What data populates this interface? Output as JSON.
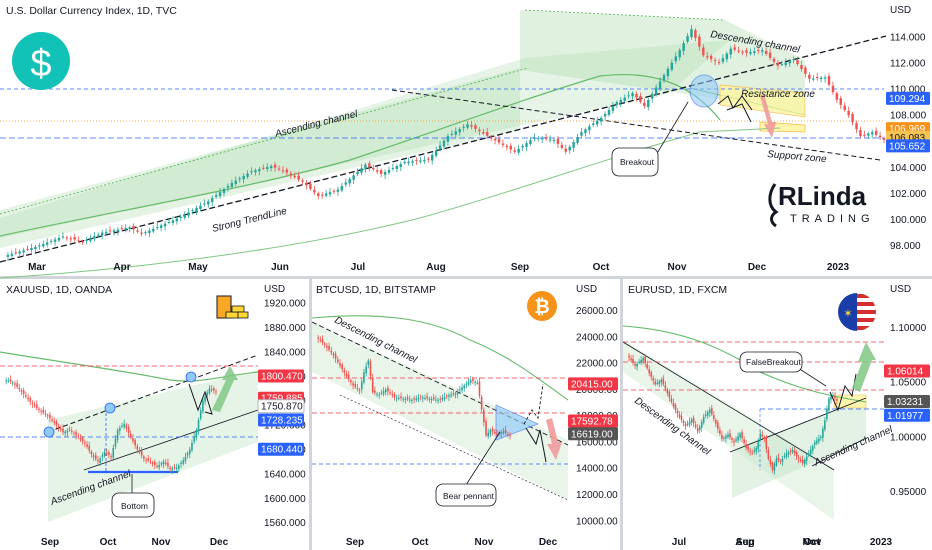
{
  "brand": {
    "logo_text_top": "RLinda",
    "logo_text_bottom": "TRADING"
  },
  "chart_data": [
    {
      "id": "dxy",
      "type": "candlestick",
      "title": "U.S. Dollar Currency Index, 1D, TVC",
      "currency_label": "USD",
      "x_labels": [
        "Mar",
        "Apr",
        "May",
        "Jun",
        "Jul",
        "Aug",
        "Sep",
        "Oct",
        "Nov",
        "Dec",
        "2023"
      ],
      "y_ticks": [
        98.0,
        100.0,
        102.0,
        104.0,
        106.0,
        108.0,
        110.0,
        112.0,
        114.0
      ],
      "ylim": [
        97.2,
        115.0
      ],
      "price_tags": [
        {
          "value": 109.294,
          "label": "109.294",
          "color": "#2962ff"
        },
        {
          "value": 106.969,
          "label": "106.969",
          "color": "#f7931a"
        },
        {
          "value": 106.3,
          "label": "106.083",
          "color": "#f6c451"
        },
        {
          "value": 105.652,
          "label": "105.652",
          "color": "#2962ff"
        }
      ],
      "annotations": [
        "Ascending channel",
        "Strong TrendLine",
        "Descending channel",
        "Resistance zone",
        "Support zone",
        "Breakout"
      ],
      "close_path": [
        [
          0,
          97.2
        ],
        [
          8,
          97.9
        ],
        [
          15,
          98.7
        ],
        [
          20,
          98.3
        ],
        [
          25,
          99.0
        ],
        [
          32,
          99.4
        ],
        [
          35,
          98.9
        ],
        [
          45,
          100.2
        ],
        [
          52,
          101.4
        ],
        [
          58,
          102.8
        ],
        [
          63,
          103.7
        ],
        [
          68,
          104.1
        ],
        [
          72,
          103.6
        ],
        [
          76,
          102.9
        ],
        [
          80,
          101.8
        ],
        [
          85,
          102.3
        ],
        [
          92,
          104.2
        ],
        [
          96,
          103.5
        ],
        [
          102,
          104.4
        ],
        [
          108,
          104.6
        ],
        [
          113,
          106.4
        ],
        [
          118,
          107.3
        ],
        [
          122,
          106.6
        ],
        [
          126,
          105.9
        ],
        [
          130,
          105.2
        ],
        [
          135,
          106.3
        ],
        [
          140,
          106.1
        ],
        [
          143,
          105.2
        ],
        [
          147,
          106.7
        ],
        [
          152,
          107.8
        ],
        [
          156,
          109.0
        ],
        [
          160,
          109.7
        ],
        [
          163,
          108.7
        ],
        [
          167,
          110.6
        ],
        [
          172,
          113.0
        ],
        [
          175,
          114.6
        ],
        [
          178,
          112.6
        ],
        [
          182,
          112.0
        ],
        [
          185,
          113.1
        ],
        [
          189,
          112.8
        ],
        [
          193,
          113.0
        ],
        [
          197,
          111.8
        ],
        [
          201,
          112.3
        ],
        [
          205,
          110.8
        ],
        [
          209,
          110.9
        ],
        [
          212,
          109.2
        ],
        [
          215,
          108.0
        ],
        [
          218,
          106.4
        ],
        [
          221,
          106.7
        ],
        [
          224,
          106.1
        ]
      ]
    },
    {
      "id": "xau",
      "type": "candlestick",
      "title": "XAUUSD, 1D, OANDA",
      "currency_label": "USD",
      "x_labels": [
        "Sep",
        "Oct",
        "Nov",
        "Dec"
      ],
      "y_ticks": [
        1560.0,
        1600.0,
        1640.0,
        1680.0,
        1720.0,
        1760.0,
        1800.0,
        1840.0,
        1880.0,
        1920.0
      ],
      "ylim": [
        1548,
        1925
      ],
      "price_tags": [
        {
          "value": 1800.47,
          "label": "1800.470",
          "color": "#f23645"
        },
        {
          "value": 1764,
          "label": "1759.885",
          "color": "#f23645"
        },
        {
          "value": 1750.87,
          "label": "1750.870",
          "color": "#ffffff"
        },
        {
          "value": 1728.235,
          "label": "1728.235",
          "color": "#2962ff"
        },
        {
          "value": 1680.44,
          "label": "1680.440",
          "color": "#2962ff"
        }
      ],
      "annotations": [
        "Ascending channel",
        "Bottom"
      ],
      "close_path": [
        [
          0,
          1795
        ],
        [
          4,
          1790
        ],
        [
          8,
          1775
        ],
        [
          12,
          1758
        ],
        [
          16,
          1745
        ],
        [
          20,
          1735
        ],
        [
          24,
          1720
        ],
        [
          27,
          1708
        ],
        [
          30,
          1712
        ],
        [
          34,
          1700
        ],
        [
          37,
          1690
        ],
        [
          40,
          1672
        ],
        [
          43,
          1660
        ],
        [
          46,
          1676
        ],
        [
          49,
          1668
        ],
        [
          52,
          1712
        ],
        [
          55,
          1722
        ],
        [
          58,
          1700
        ],
        [
          61,
          1680
        ],
        [
          64,
          1665
        ],
        [
          67,
          1660
        ],
        [
          70,
          1652
        ],
        [
          73,
          1660
        ],
        [
          76,
          1648
        ],
        [
          79,
          1650
        ],
        [
          82,
          1662
        ],
        [
          85,
          1680
        ],
        [
          88,
          1712
        ],
        [
          91,
          1760
        ],
        [
          94,
          1780
        ],
        [
          97,
          1775
        ]
      ]
    },
    {
      "id": "btc",
      "type": "candlestick",
      "title": "BTCUSD, 1D, BITSTAMP",
      "currency_label": "USD",
      "x_labels": [
        "Sep",
        "Oct",
        "Nov",
        "Dec"
      ],
      "y_ticks": [
        10000,
        12000,
        14000,
        16000,
        18000,
        20000,
        22000,
        24000,
        26000
      ],
      "ylim": [
        9300,
        26800
      ],
      "price_tags": [
        {
          "value": 20415,
          "label": "20415.00",
          "color": "#f23645"
        },
        {
          "value": 17592.78,
          "label": "17592.78",
          "color": "#f23645"
        },
        {
          "value": 16619,
          "label": "16619.00",
          "color": "#555555"
        }
      ],
      "annotations": [
        "Descending channel",
        "Bear pennant"
      ],
      "close_path": [
        [
          0,
          24000
        ],
        [
          4,
          23400
        ],
        [
          8,
          22600
        ],
        [
          11,
          21800
        ],
        [
          14,
          21000
        ],
        [
          17,
          20300
        ],
        [
          20,
          19900
        ],
        [
          22,
          21300
        ],
        [
          24,
          22200
        ],
        [
          26,
          19800
        ],
        [
          29,
          19600
        ],
        [
          32,
          20000
        ],
        [
          36,
          19400
        ],
        [
          40,
          19300
        ],
        [
          44,
          19200
        ],
        [
          48,
          19400
        ],
        [
          52,
          19300
        ],
        [
          56,
          19200
        ],
        [
          60,
          19500
        ],
        [
          64,
          19700
        ],
        [
          68,
          20300
        ],
        [
          71,
          20700
        ],
        [
          74,
          20500
        ],
        [
          76,
          18500
        ],
        [
          78,
          16500
        ],
        [
          80,
          16900
        ],
        [
          83,
          16600
        ],
        [
          86,
          16800
        ],
        [
          89,
          16500
        ]
      ]
    },
    {
      "id": "eur",
      "type": "candlestick",
      "title": "EURUSD, 1D, FXCM",
      "currency_label": "USD",
      "x_labels": [
        "Jul",
        "Aug",
        "Sep",
        "Oct",
        "Nov",
        "2023"
      ],
      "y_ticks": [
        0.95,
        1.0,
        1.05,
        1.1
      ],
      "ylim": [
        0.915,
        1.125
      ],
      "price_tags": [
        {
          "value": 1.06014,
          "label": "1.06014",
          "color": "#f23645"
        },
        {
          "value": 1.03231,
          "label": "1.03231",
          "color": "#555555"
        },
        {
          "value": 1.01977,
          "label": "1.01977",
          "color": "#2962ff"
        }
      ],
      "annotations": [
        "Descending channel",
        "Ascending channel",
        "FalseBreakout"
      ],
      "close_path": [
        [
          0,
          1.075
        ],
        [
          4,
          1.065
        ],
        [
          8,
          1.072
        ],
        [
          11,
          1.058
        ],
        [
          14,
          1.048
        ],
        [
          17,
          1.052
        ],
        [
          20,
          1.04
        ],
        [
          23,
          1.028
        ],
        [
          26,
          1.018
        ],
        [
          29,
          1.01
        ],
        [
          32,
          1.016
        ],
        [
          35,
          1.005
        ],
        [
          38,
          1.018
        ],
        [
          41,
          1.025
        ],
        [
          44,
          1.012
        ],
        [
          47,
          0.998
        ],
        [
          50,
          1.002
        ],
        [
          53,
          0.995
        ],
        [
          56,
          1.003
        ],
        [
          59,
          0.99
        ],
        [
          62,
          0.985
        ],
        [
          64,
          0.99
        ],
        [
          66,
          1.003
        ],
        [
          68,
          0.998
        ],
        [
          70,
          0.98
        ],
        [
          72,
          0.97
        ],
        [
          74,
          0.98
        ],
        [
          76,
          0.978
        ],
        [
          79,
          0.985
        ],
        [
          82,
          0.988
        ],
        [
          84,
          0.982
        ],
        [
          87,
          0.976
        ],
        [
          90,
          0.985
        ],
        [
          93,
          0.995
        ],
        [
          96,
          1.0
        ],
        [
          98,
          1.015
        ],
        [
          100,
          1.035
        ],
        [
          102,
          1.038
        ],
        [
          104,
          1.033
        ]
      ]
    }
  ]
}
